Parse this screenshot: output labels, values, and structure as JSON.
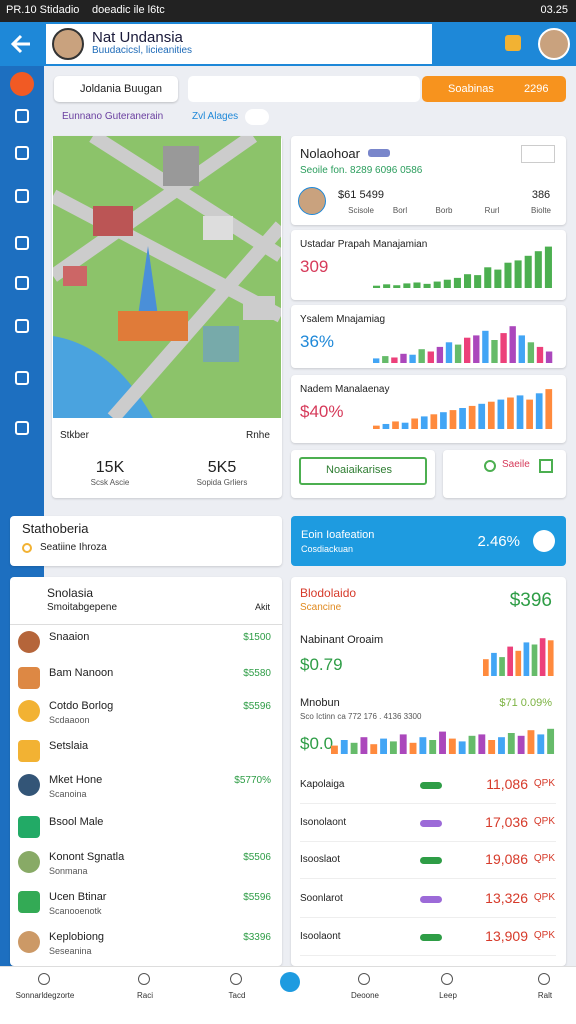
{
  "status": {
    "left": "PR.10 Stidadio",
    "notice": "doeadic ile l6tc",
    "time": "03.25"
  },
  "header": {
    "title": "Nat Undansia",
    "subtitle": "Buudacicsl, licieanities"
  },
  "search": {
    "chip": "Joldania Buugan",
    "button": "Soabinas",
    "badge": "2296"
  },
  "filters": {
    "label": "Eunnano Guteranerain",
    "chip": "Zvl Alages"
  },
  "map_card": {
    "label": "Stkber",
    "action": "Rnhe",
    "stats": [
      {
        "value": "15K",
        "label": "Scsk Ascie"
      },
      {
        "value": "5K5",
        "label": "Sopida Grliers"
      }
    ]
  },
  "profile_card": {
    "title": "Nolaohoar",
    "subtitle": "Seoile fon. 8289 6096 0586",
    "stats": [
      {
        "value": "$61 5499",
        "label": "Scisole"
      },
      {
        "label": "Borl"
      },
      {
        "label": "Borb"
      },
      {
        "label": "Rurl"
      },
      {
        "value": "386",
        "label": "Biolte"
      }
    ]
  },
  "mini_charts": [
    {
      "title": "Ustadar Prapah Manajamian",
      "value": "309",
      "ylim": [
        0,
        100
      ],
      "colors": [
        "#4caf50"
      ],
      "values": [
        5,
        8,
        6,
        10,
        12,
        9,
        14,
        18,
        22,
        30,
        28,
        45,
        40,
        55,
        60,
        70,
        80,
        90
      ]
    },
    {
      "title": "Ysalem Mnajamiag",
      "value": "36%",
      "ylim": [
        0,
        100
      ],
      "colors": [
        "#42a5f5",
        "#66bb6a",
        "#ec407a",
        "#ab47bc"
      ],
      "values": [
        10,
        15,
        12,
        20,
        18,
        30,
        25,
        35,
        45,
        40,
        55,
        60,
        70,
        50,
        65,
        80,
        60,
        45,
        35,
        25
      ]
    },
    {
      "title": "Nadem Manalaenay",
      "value": "$40%",
      "ylim": [
        0,
        100
      ],
      "colors": [
        "#ff8a3d",
        "#42a5f5"
      ],
      "values": [
        8,
        12,
        18,
        15,
        25,
        30,
        35,
        40,
        45,
        50,
        55,
        60,
        65,
        70,
        75,
        80,
        70,
        85,
        95
      ]
    }
  ],
  "buttons": {
    "primary": "Noaiaikarises",
    "secondary": "Saeile"
  },
  "section": {
    "title": "Stathoberia",
    "subtitle": "Seatiine Ihroza"
  },
  "blue_card": {
    "title": "Eoin Ioafeation",
    "subtitle": "Cosdiackuan",
    "value": "2.46%"
  },
  "list": {
    "title": "Snolasia",
    "subheader": "Smoitabgepene",
    "action": "Akit",
    "items": [
      {
        "name": "Snaaion",
        "value": "$1500"
      },
      {
        "name": "Bam Nanoon",
        "value": "$5580"
      },
      {
        "name": "Cotdo Borlog",
        "sub": "Scdaaoon",
        "value": "$5596"
      },
      {
        "name": "Setslaia"
      },
      {
        "name": "Mket Hone",
        "sub": "Scanoina",
        "value": "$5770%"
      },
      {
        "name": "Bsool Male"
      },
      {
        "name": "Konont Sgnatla",
        "sub": "Sonmana",
        "value": "$5506"
      },
      {
        "name": "Ucen Btinar",
        "sub": "Scanooenotk",
        "value": "$5596"
      },
      {
        "name": "Keplobiong",
        "sub": "Seseanina",
        "value": "$3396"
      }
    ]
  },
  "finance": {
    "title": "Blodolaido",
    "subtitle": "Scancine",
    "total": "$396",
    "chart1": {
      "title": "Nabinant Oroaim",
      "value": "$0.79",
      "ylim": [
        0,
        100
      ],
      "colors": [
        "#ff8a3d",
        "#42a5f5",
        "#66bb6a",
        "#ec407a"
      ],
      "values": [
        40,
        55,
        45,
        70,
        60,
        80,
        75,
        90,
        85
      ]
    },
    "chart2": {
      "title": "Mnobun",
      "subtitle": "Sco Ictinn ca 772 176 . 4136 3300",
      "value": "$0.0",
      "note": "$71 0.09%",
      "ylim": [
        0,
        100
      ],
      "colors": [
        "#ff8a3d",
        "#42a5f5",
        "#66bb6a",
        "#ab47bc"
      ],
      "values": [
        30,
        50,
        40,
        60,
        35,
        55,
        45,
        70,
        40,
        60,
        50,
        80,
        55,
        45,
        65,
        70,
        50,
        60,
        75,
        65,
        85,
        70,
        90
      ]
    },
    "rows": [
      {
        "label": "Kapolaiga",
        "value": "11,086",
        "unit": "QPK"
      },
      {
        "label": "Isonolaont",
        "value": "17,036",
        "unit": "QPK"
      },
      {
        "label": "Isooslaot",
        "value": "19,086",
        "unit": "QPK"
      },
      {
        "label": "Soonlarot",
        "value": "13,326",
        "unit": "QPK"
      },
      {
        "label": "Isoolaont",
        "value": "13,909",
        "unit": "QPK"
      }
    ]
  },
  "nav": [
    {
      "label": "Sonnarldegzorte"
    },
    {
      "label": "Raci"
    },
    {
      "label": "Tacd"
    },
    {
      "label": ""
    },
    {
      "label": "Deoone"
    },
    {
      "label": "Leep"
    },
    {
      "label": "Ralt"
    }
  ]
}
